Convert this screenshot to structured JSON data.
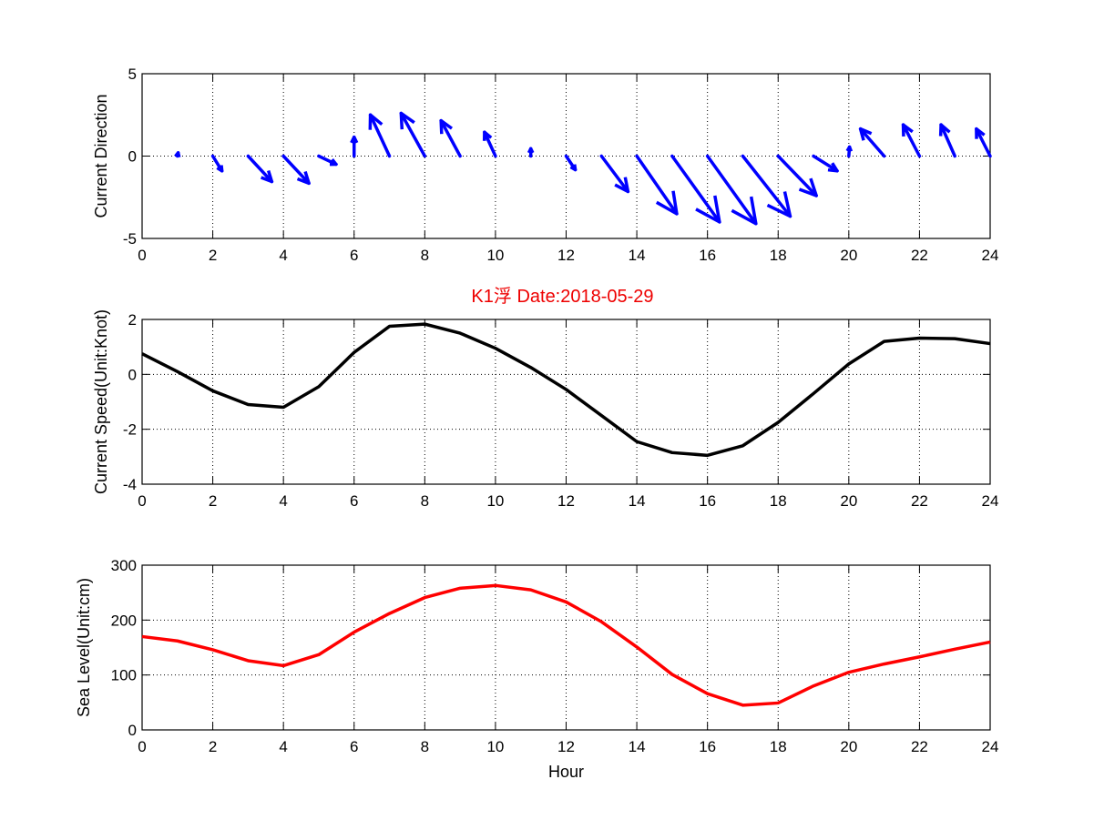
{
  "chart_data": [
    {
      "type": "quiver",
      "title": "",
      "xlabel": "",
      "ylabel": "Current Direction",
      "xlim": [
        0,
        24
      ],
      "ylim": [
        -5,
        5
      ],
      "xticks": [
        "0",
        "2",
        "4",
        "6",
        "8",
        "10",
        "12",
        "14",
        "16",
        "18",
        "20",
        "22",
        "24"
      ],
      "yticks": [
        "-5",
        "0",
        "5"
      ],
      "grid": true,
      "color": "#0000ff",
      "x": [
        1,
        2,
        3,
        4,
        5,
        6,
        7,
        8,
        9,
        10,
        11,
        12,
        13,
        14,
        15,
        16,
        17,
        18,
        19,
        20,
        21,
        22,
        23,
        24
      ],
      "u": [
        0.02,
        0.26,
        0.67,
        0.72,
        0.49,
        0,
        -0.54,
        -0.67,
        -0.54,
        -0.31,
        0,
        0.26,
        0.75,
        1.13,
        1.34,
        1.37,
        1.34,
        1.08,
        0.67,
        0.02,
        -0.67,
        -0.46,
        -0.39,
        -0.39
      ],
      "v": [
        0.2,
        -0.9,
        -1.55,
        -1.65,
        -0.5,
        1.15,
        2.5,
        2.6,
        2.15,
        1.45,
        0.45,
        -0.83,
        -2.15,
        -3.5,
        -4.0,
        -4.1,
        -3.65,
        -2.4,
        -0.9,
        0.55,
        1.65,
        1.9,
        1.9,
        1.65
      ]
    },
    {
      "type": "line",
      "title": "K1浮    Date:2018-05-29",
      "title_color": "#ee0000",
      "xlabel": "",
      "ylabel": "Current Speed(Unit:Knot)",
      "xlim": [
        0,
        24
      ],
      "ylim": [
        -4,
        2
      ],
      "xticks": [
        "0",
        "2",
        "4",
        "6",
        "8",
        "10",
        "12",
        "14",
        "16",
        "18",
        "20",
        "22",
        "24"
      ],
      "yticks": [
        "-4",
        "-2",
        "0",
        "2"
      ],
      "grid": true,
      "color": "#000000",
      "x": [
        0,
        1,
        2,
        3,
        4,
        5,
        6,
        7,
        8,
        9,
        10,
        11,
        12,
        13,
        14,
        15,
        16,
        17,
        18,
        19,
        20,
        21,
        22,
        23,
        24
      ],
      "y": [
        0.75,
        0.1,
        -0.6,
        -1.1,
        -1.2,
        -0.45,
        0.8,
        1.75,
        1.83,
        1.5,
        0.95,
        0.25,
        -0.55,
        -1.5,
        -2.45,
        -2.85,
        -2.95,
        -2.6,
        -1.75,
        -0.7,
        0.38,
        1.2,
        1.32,
        1.3,
        1.12
      ]
    },
    {
      "type": "line",
      "title": "",
      "xlabel": "Hour",
      "ylabel": "Sea Level(Unit:cm)",
      "xlim": [
        0,
        24
      ],
      "ylim": [
        0,
        300
      ],
      "xticks": [
        "0",
        "2",
        "4",
        "6",
        "8",
        "10",
        "12",
        "14",
        "16",
        "18",
        "20",
        "22",
        "24"
      ],
      "yticks": [
        "0",
        "100",
        "200",
        "300"
      ],
      "grid": true,
      "color": "#ff0000",
      "x": [
        0,
        1,
        2,
        3,
        4,
        5,
        6,
        7,
        8,
        9,
        10,
        11,
        12,
        13,
        14,
        15,
        16,
        17,
        18,
        19,
        20,
        21,
        22,
        23,
        24
      ],
      "y": [
        170,
        162,
        146,
        126,
        117,
        137,
        178,
        212,
        241,
        258,
        263,
        255,
        233,
        197,
        151,
        101,
        66,
        45,
        49,
        80,
        105,
        120,
        133,
        147,
        160
      ]
    }
  ]
}
